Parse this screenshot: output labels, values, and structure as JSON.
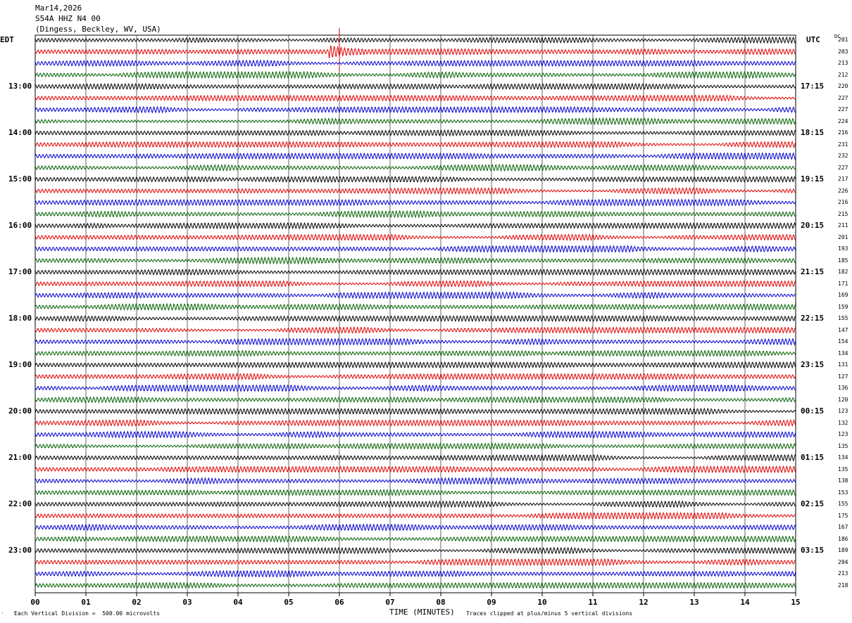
{
  "header": {
    "date": "Mar14,2026",
    "station": "S54A HHZ N4 00",
    "location": "(Dingess, Beckley, WV, USA)"
  },
  "left_tz": "EDT",
  "right_tz": "UTC",
  "dc_label": "DC",
  "footer": {
    "scale_note": "Each Vertical Division =  500.00 microvolts",
    "xlabel": "TIME (MINUTES)",
    "clip_note": "Traces clipped at plus/minus 5 vertical divisions",
    "corner_mark": "‵"
  },
  "chart_data": {
    "type": "line",
    "title": "",
    "xlabel": "TIME (MINUTES)",
    "xlim": [
      0,
      15
    ],
    "x_ticks": [
      "00",
      "01",
      "02",
      "03",
      "04",
      "05",
      "06",
      "07",
      "08",
      "09",
      "10",
      "11",
      "12",
      "13",
      "14",
      "15"
    ],
    "trace_minutes": 15,
    "trace_count": 48,
    "trace_colors": [
      "#000000",
      "#e00000",
      "#0000d0",
      "#006000"
    ],
    "grid": true,
    "left_time_labels": [
      "13:00",
      "14:00",
      "15:00",
      "16:00",
      "17:00",
      "18:00",
      "19:00",
      "20:00",
      "21:00",
      "22:00",
      "23:00"
    ],
    "right_time_labels": [
      "17:15",
      "18:15",
      "19:15",
      "20:15",
      "21:15",
      "22:15",
      "23:15",
      "00:15",
      "01:15",
      "02:15",
      "03:15"
    ],
    "dc_offsets": [
      201,
      203,
      213,
      212,
      220,
      227,
      227,
      224,
      216,
      231,
      232,
      227,
      217,
      226,
      216,
      215,
      211,
      201,
      193,
      185,
      182,
      171,
      169,
      159,
      155,
      147,
      154,
      134,
      131,
      127,
      136,
      120,
      123,
      132,
      123,
      135,
      134,
      135,
      138,
      153,
      155,
      175,
      167,
      186,
      189,
      204,
      213,
      218
    ],
    "events": [
      {
        "trace": 1,
        "minute": 6.0,
        "amplitude": "clipped",
        "duration_min": 0.5
      }
    ]
  }
}
